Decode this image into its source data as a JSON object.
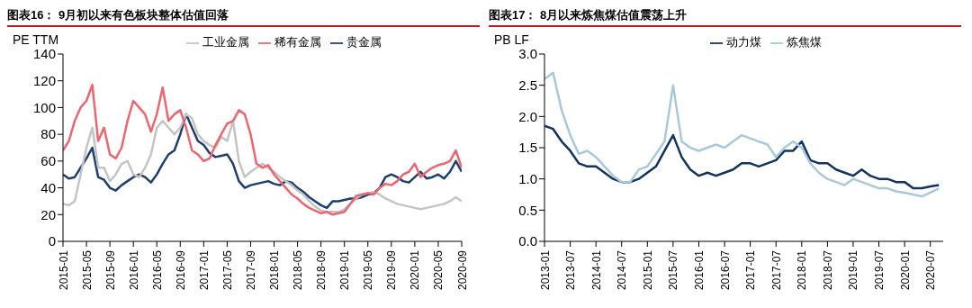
{
  "chart_data": [
    {
      "type": "line",
      "title": "图表16：  9月初以来有色板块整体估值回落",
      "ylabel": "PE TTM",
      "legend": "top",
      "grid": false,
      "marker": "none",
      "line_style": "solid",
      "x": [
        "2015-01",
        "2015-02",
        "2015-03",
        "2015-04",
        "2015-05",
        "2015-06",
        "2015-07",
        "2015-08",
        "2015-09",
        "2015-10",
        "2015-11",
        "2015-12",
        "2016-01",
        "2016-02",
        "2016-03",
        "2016-04",
        "2016-05",
        "2016-06",
        "2016-07",
        "2016-08",
        "2016-09",
        "2016-10",
        "2016-11",
        "2016-12",
        "2017-01",
        "2017-02",
        "2017-03",
        "2017-04",
        "2017-05",
        "2017-06",
        "2017-07",
        "2017-08",
        "2017-09",
        "2017-10",
        "2017-11",
        "2017-12",
        "2018-01",
        "2018-02",
        "2018-03",
        "2018-04",
        "2018-05",
        "2018-06",
        "2018-07",
        "2018-08",
        "2018-09",
        "2018-10",
        "2018-11",
        "2018-12",
        "2019-01",
        "2019-02",
        "2019-03",
        "2019-04",
        "2019-05",
        "2019-06",
        "2019-07",
        "2019-08",
        "2019-09",
        "2019-10",
        "2019-11",
        "2019-12",
        "2020-01",
        "2020-02",
        "2020-03",
        "2020-04",
        "2020-05",
        "2020-06",
        "2020-07",
        "2020-08",
        "2020-09"
      ],
      "xlim": [
        "2015-01",
        "2020-09"
      ],
      "xticks": [
        "2015-01",
        "2015-05",
        "2015-09",
        "2016-01",
        "2016-05",
        "2016-09",
        "2017-01",
        "2017-05",
        "2017-09",
        "2018-01",
        "2018-05",
        "2018-09",
        "2019-01",
        "2019-05",
        "2019-09",
        "2020-01",
        "2020-05",
        "2020-09"
      ],
      "ylim": [
        0,
        140
      ],
      "yticks": [
        0,
        20,
        40,
        60,
        80,
        100,
        120,
        140
      ],
      "series": [
        {
          "name": "贵金属",
          "color": "#1f3d6d",
          "values": [
            50,
            47,
            48,
            55,
            62,
            70,
            48,
            46,
            40,
            38,
            42,
            45,
            48,
            50,
            48,
            44,
            50,
            58,
            65,
            68,
            80,
            95,
            85,
            75,
            72,
            66,
            63,
            64,
            65,
            58,
            45,
            40,
            42,
            43,
            44,
            45,
            43,
            42,
            45,
            44,
            40,
            37,
            33,
            30,
            27,
            25,
            30,
            30,
            31,
            32,
            32,
            33,
            35,
            36,
            40,
            48,
            50,
            48,
            45,
            44,
            48,
            52,
            47,
            48,
            50,
            47,
            52,
            60,
            52
          ]
        },
        {
          "name": "工业金属",
          "color": "#c4c4c4",
          "values": [
            28,
            27,
            30,
            50,
            70,
            85,
            55,
            55,
            45,
            50,
            58,
            60,
            50,
            48,
            55,
            65,
            85,
            90,
            85,
            80,
            85,
            95,
            92,
            80,
            75,
            72,
            70,
            78,
            75,
            90,
            60,
            48,
            52,
            55,
            58,
            55,
            52,
            48,
            45,
            42,
            38,
            35,
            30,
            26,
            23,
            22,
            22,
            22,
            24,
            28,
            32,
            35,
            36,
            37,
            35,
            32,
            30,
            28,
            27,
            26,
            25,
            24,
            25,
            26,
            27,
            28,
            30,
            33,
            30
          ]
        },
        {
          "name": "稀有金属",
          "color": "#ea6670",
          "values": [
            68,
            75,
            90,
            100,
            105,
            117,
            75,
            85,
            65,
            62,
            70,
            90,
            105,
            100,
            95,
            82,
            95,
            115,
            90,
            95,
            98,
            85,
            68,
            65,
            60,
            62,
            72,
            80,
            88,
            90,
            98,
            95,
            80,
            58,
            55,
            57,
            50,
            45,
            40,
            35,
            32,
            28,
            25,
            23,
            21,
            22,
            20,
            21,
            22,
            28,
            34,
            35,
            36,
            35,
            40,
            43,
            42,
            45,
            50,
            52,
            58,
            48,
            52,
            55,
            57,
            58,
            60,
            68,
            55
          ]
        }
      ]
    },
    {
      "type": "line",
      "title": "图表17：  8月以来炼焦煤估值震荡上升",
      "ylabel": "PB LF",
      "legend": "top",
      "grid": false,
      "marker": "none",
      "line_style": "solid",
      "x": [
        "2013-01",
        "2013-03",
        "2013-05",
        "2013-07",
        "2013-09",
        "2013-11",
        "2014-01",
        "2014-03",
        "2014-05",
        "2014-07",
        "2014-09",
        "2014-11",
        "2015-01",
        "2015-03",
        "2015-05",
        "2015-07",
        "2015-09",
        "2015-11",
        "2016-01",
        "2016-03",
        "2016-05",
        "2016-07",
        "2016-09",
        "2016-11",
        "2017-01",
        "2017-03",
        "2017-05",
        "2017-07",
        "2017-09",
        "2017-11",
        "2018-01",
        "2018-03",
        "2018-05",
        "2018-07",
        "2018-09",
        "2018-11",
        "2019-01",
        "2019-03",
        "2019-05",
        "2019-07",
        "2019-09",
        "2019-11",
        "2020-01",
        "2020-03",
        "2020-05",
        "2020-07",
        "2020-09"
      ],
      "xlim": [
        "2013-01",
        "2020-10"
      ],
      "xticks": [
        "2013-01",
        "2013-07",
        "2014-01",
        "2014-07",
        "2015-01",
        "2015-07",
        "2016-01",
        "2016-07",
        "2017-01",
        "2017-07",
        "2018-01",
        "2018-07",
        "2019-01",
        "2019-07",
        "2020-01",
        "2020-07"
      ],
      "ylim": [
        0,
        3
      ],
      "yticks": [
        {
          "value": 0,
          "label": "0.0"
        },
        {
          "value": 0.5,
          "label": "0.5"
        },
        {
          "value": 1,
          "label": "1.0"
        },
        {
          "value": 1.5,
          "label": "1.5"
        },
        {
          "value": 2,
          "label": "2.0"
        },
        {
          "value": 2.5,
          "label": "2.5"
        },
        {
          "value": 3,
          "label": "3.0"
        }
      ],
      "series": [
        {
          "name": "动力煤",
          "color": "#13335f",
          "values": [
            1.85,
            1.8,
            1.6,
            1.45,
            1.25,
            1.2,
            1.2,
            1.1,
            1.0,
            0.95,
            0.95,
            1.0,
            1.1,
            1.2,
            1.45,
            1.7,
            1.35,
            1.15,
            1.05,
            1.1,
            1.05,
            1.1,
            1.15,
            1.25,
            1.25,
            1.2,
            1.25,
            1.3,
            1.45,
            1.45,
            1.6,
            1.3,
            1.25,
            1.25,
            1.15,
            1.1,
            1.05,
            1.15,
            1.05,
            1.0,
            1.0,
            0.95,
            0.95,
            0.85,
            0.85,
            0.88,
            0.9
          ]
        },
        {
          "name": "炼焦煤",
          "color": "#a9c8d8",
          "values": [
            2.6,
            2.7,
            2.1,
            1.7,
            1.4,
            1.45,
            1.35,
            1.2,
            1.05,
            0.95,
            0.95,
            1.15,
            1.2,
            1.4,
            1.6,
            2.5,
            1.6,
            1.5,
            1.45,
            1.5,
            1.55,
            1.5,
            1.6,
            1.7,
            1.65,
            1.6,
            1.55,
            1.35,
            1.5,
            1.6,
            1.5,
            1.25,
            1.1,
            1.0,
            0.95,
            0.9,
            1.0,
            0.95,
            0.9,
            0.85,
            0.85,
            0.8,
            0.78,
            0.75,
            0.72,
            0.78,
            0.85
          ]
        }
      ]
    }
  ]
}
